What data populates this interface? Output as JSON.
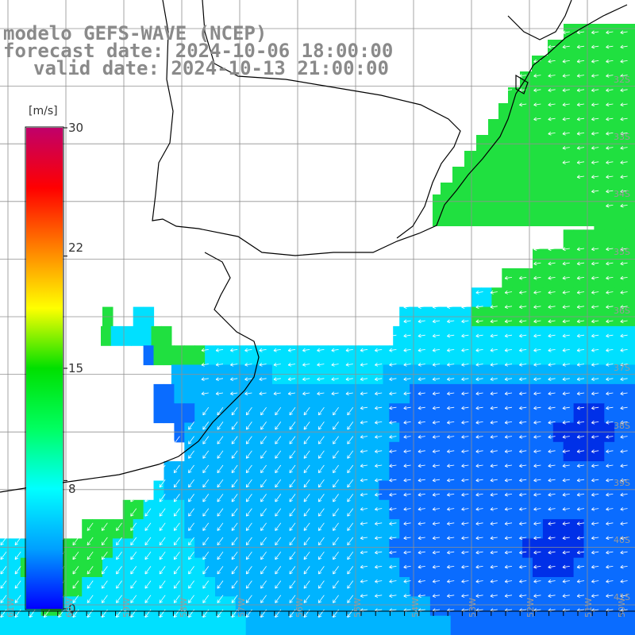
{
  "title": {
    "line1": "modelo GEFS-WAVE (NCEP)",
    "line2": "forecast date: 2024-10-06 18:00:00",
    "line3": "valid date: 2024-10-13 21:00:00"
  },
  "colorbar": {
    "unit": "[m/s]",
    "ticks": [
      "30",
      "22",
      "15",
      "8",
      "0"
    ],
    "tick_values": [
      30,
      22,
      15,
      8,
      0
    ],
    "min": 0,
    "max": 30,
    "colors": [
      "#0000ff",
      "#00a0ff",
      "#00ffff",
      "#00ff60",
      "#00e000",
      "#ffff00",
      "#ff8000",
      "#ff0000",
      "#c0006a"
    ]
  },
  "map": {
    "land_color": "#ffffff",
    "coast_color": "#000000",
    "grid_color": "#909090",
    "lat_labels": [
      "32S",
      "33S",
      "34S",
      "35S",
      "36S",
      "37S",
      "38S",
      "39S",
      "40S",
      "41S"
    ],
    "lon_labels": [
      "61W",
      "60W",
      "59W",
      "58W",
      "57W",
      "56W",
      "55W",
      "54W",
      "53W",
      "52W",
      "51W",
      "50W"
    ],
    "field_rows": [
      "..........................................................GGGG",
      ".......................................................GGGGGGG",
      "....................................................GGGGGGGGGG",
      ".................................................GGGGGGGGGGGGG",
      "..............................................CCGGGGGGGGGGGGGG",
      "..........G..CC........................CCCCCCCGGGGGGGGGGGGGGGG",
      "..........GCCCCGG......................CCCCCCCCCCCCCCCCCCCCCCCC",
      "..............BGGGGGCCCCCCCCCCCCCCCCCCCCCCCCCCCCCCCCCCCCCCCCCC",
      ".................LLLLLLLLLLCCCCCCCCCCCLLLLLLLLLLLLLLLLLLLLLLLLL",
      "...............BBLLLLLLLLLLLLLLLLLLLLLLLBBBBBBBBBBBBBBBBBBBBBB",
      "...............BBBBLLLLLLLLLLLLLLLLLLLBBBBBBBBBBBBBBBBBBDDDBBB",
      ".................BLLLLLLLLLLLLLLLLLLLLLBBBBBBBBBBBBBBBDDDDDDBB",
      "..................LLLLLLLLLLLLLLLLLLLLBBBBBBBBBBBBBBBBBDDDDBBB",
      "................LLLLLLLLLLLLLLLLLLLLLLBBBBBBBBBBBBBBBBBBBBBBBB",
      "...............CLLLLLLLLLLLLLLLLLLLLLBBBBBBBBBBBBBBBBBBBBBBBBB",
      "............GGCCCCLLLLLLLLLLLLLLLLLLLLBBBBBBBBBBBBBBBBBBBBBBBB",
      "........GGGGGCCCCCLLLLLLLLLLLLLLLLLLLLLBBBBBBBBBBBBBBDDDDBBBBB",
      "CCCGGGGGGGGCCCCCCCCLLLLLLLLLLLLLLLLLLLBBBBBBBBBBBBBDDDDDDBBBBB",
      "CCGGGGGGGGCCCCCCCCCCLLLLLLLLLLLLLLLLLLLBBBBBBBBBBBBBDDDDBBBBBB",
      "CCCGGGGGCCCCCCCCCCCCCLLLLLLLLLLLLLLLLLLLBBBBBBBBBBBBBBBBBBBBBB",
      "CCCCGGCCCCCCCCCCCCCCCCCLLLLLLLLLLLLLLLLLLLBBBBBBBBBBBBBBBBBBBB",
      "CCCCCCCCCCCCCCCCCCCCCCCCLLLLLLLLLLLLLLLLLLLLBBBBBBBBBBBBBBBBBB"
    ]
  }
}
